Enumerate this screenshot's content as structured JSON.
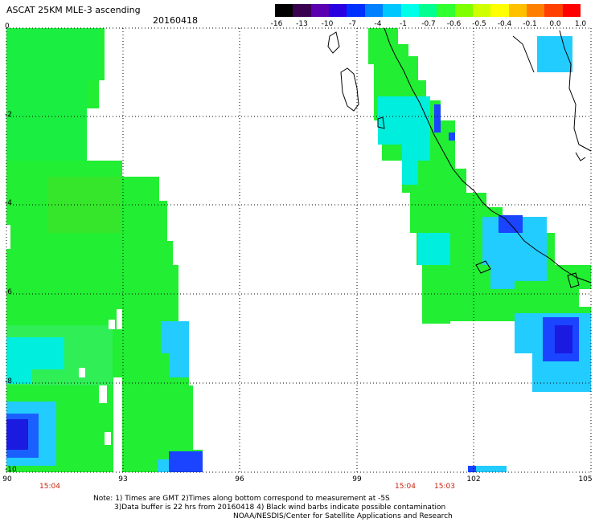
{
  "header": {
    "title": "ASCAT 25KM MLE-3 ascending",
    "date": "20160418"
  },
  "colorbar": {
    "labels": [
      "-16",
      "-13",
      "-10",
      "-7",
      "-4",
      "-1",
      "-0.7",
      "-0.6",
      "-0.5",
      "-0.4",
      "-0.1",
      "0.0",
      "1.0"
    ],
    "colors": [
      "#000000",
      "#3a0050",
      "#5a00b0",
      "#2a00e0",
      "#0030ff",
      "#0080ff",
      "#00c8ff",
      "#00ffe8",
      "#00ff90",
      "#30ff30",
      "#80ff00",
      "#d0ff00",
      "#ffff00",
      "#ffc000",
      "#ff8000",
      "#ff4000",
      "#ff0000"
    ]
  },
  "axes": {
    "x_ticks": [
      "90",
      "93",
      "96",
      "99",
      "102",
      "105"
    ],
    "y_ticks": [
      "0",
      "-2",
      "-4",
      "-6",
      "-8",
      "-10"
    ],
    "times": [
      "15:04",
      "15:04",
      "15:03"
    ]
  },
  "notes": {
    "line1": "Note: 1) Times are GMT 2)Times along bottom correspond to measurement at -5S",
    "line2": "3)Data buffer is 22 hrs from 20160418 4) Black wind barbs indicate possible contamination",
    "line3": "NOAA/NESDIS/Center for Satellite Applications and Research"
  },
  "colors": {
    "green": "#22ee33",
    "bright_green": "#00ff22",
    "cyan": "#00eeee",
    "light_blue": "#22ccff",
    "blue": "#0044ff",
    "dark_blue": "#1a1aee",
    "time_red": "#c8200a"
  }
}
